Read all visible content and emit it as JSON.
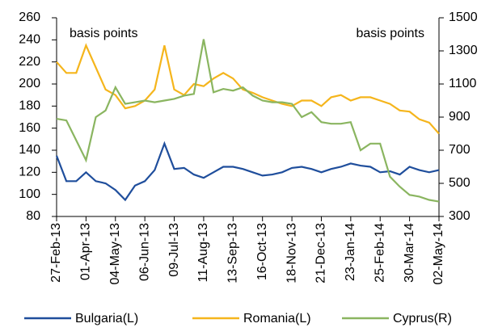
{
  "chart_data": {
    "type": "line",
    "y_label": "basis points",
    "y2_label": "basis points",
    "x": [
      "27-Feb-13",
      "10-Mar-13",
      "21-Mar-13",
      "01-Apr-13",
      "12-Apr-13",
      "23-Apr-13",
      "04-May-13",
      "15-May-13",
      "26-May-13",
      "06-Jun-13",
      "17-Jun-13",
      "28-Jun-13",
      "09-Jul-13",
      "20-Jul-13",
      "31-Jul-13",
      "11-Aug-13",
      "22-Aug-13",
      "02-Sep-13",
      "13-Sep-13",
      "24-Sep-13",
      "05-Oct-13",
      "16-Oct-13",
      "27-Oct-13",
      "07-Nov-13",
      "18-Nov-13",
      "29-Nov-13",
      "10-Dec-13",
      "21-Dec-13",
      "01-Jan-14",
      "12-Jan-14",
      "23-Jan-14",
      "03-Feb-14",
      "14-Feb-14",
      "25-Feb-14",
      "08-Mar-14",
      "19-Mar-14",
      "30-Mar-14",
      "10-Apr-14",
      "21-Apr-14",
      "02-May-14"
    ],
    "xticks": [
      "27-Feb-13",
      "01-Apr-13",
      "04-May-13",
      "06-Jun-13",
      "09-Jul-13",
      "11-Aug-13",
      "13-Sep-13",
      "16-Oct-13",
      "18-Nov-13",
      "21-Dec-13",
      "23-Jan-14",
      "25-Feb-14",
      "30-Mar-14",
      "02-May-14"
    ],
    "ylim": [
      80,
      260
    ],
    "yticks": [
      80,
      100,
      120,
      140,
      160,
      180,
      200,
      220,
      240,
      260
    ],
    "y2lim": [
      300,
      1500
    ],
    "y2ticks": [
      300,
      500,
      700,
      900,
      1100,
      1300,
      1500
    ],
    "series": [
      {
        "name": "Bulgaria(L)",
        "color": "#1f4e9c",
        "values": [
          135,
          112,
          112,
          120,
          112,
          110,
          104,
          95,
          108,
          112,
          122,
          146,
          123,
          124,
          118,
          115,
          120,
          125,
          125,
          123,
          120,
          117,
          118,
          120,
          124,
          125,
          123,
          120,
          123,
          125,
          128,
          126,
          125,
          120,
          121,
          118,
          125,
          122,
          120,
          122
        ]
      },
      {
        "name": "Romania(L)",
        "color": "#f5b51c",
        "values": [
          220,
          210,
          210,
          235,
          215,
          195,
          190,
          178,
          180,
          185,
          195,
          235,
          195,
          190,
          200,
          198,
          205,
          210,
          205,
          195,
          192,
          188,
          185,
          182,
          180,
          185,
          185,
          180,
          188,
          190,
          185,
          188,
          188,
          185,
          182,
          176,
          175,
          168,
          165,
          155
        ]
      },
      {
        "name": "Cyprus(R)",
        "color": "#8ab560",
        "axis": "y2",
        "values": [
          890,
          880,
          760,
          640,
          900,
          940,
          1080,
          980,
          990,
          1000,
          990,
          1000,
          1010,
          1030,
          1040,
          1370,
          1050,
          1070,
          1060,
          1080,
          1030,
          1000,
          990,
          990,
          980,
          900,
          930,
          870,
          860,
          860,
          870,
          700,
          740,
          740,
          540,
          480,
          430,
          420,
          400,
          390
        ]
      }
    ]
  }
}
